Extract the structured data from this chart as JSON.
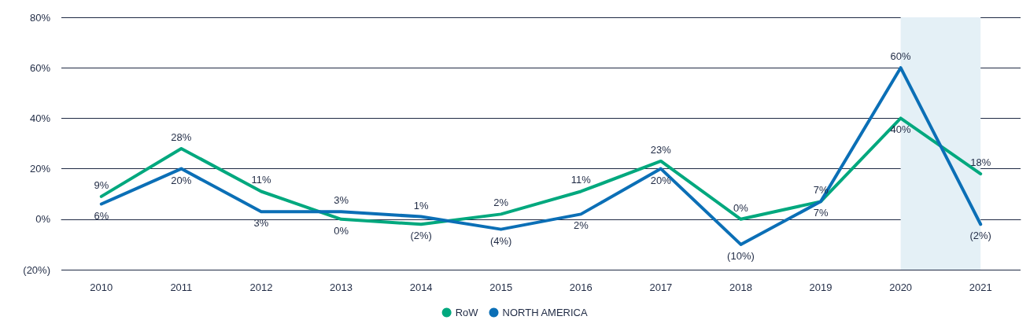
{
  "chart_data": {
    "type": "line",
    "categories": [
      "2010",
      "2011",
      "2012",
      "2013",
      "2014",
      "2015",
      "2016",
      "2017",
      "2018",
      "2019",
      "2020",
      "2021"
    ],
    "series": [
      {
        "name": "RoW",
        "color": "#00a87e",
        "values": [
          9,
          28,
          11,
          0,
          -2,
          2,
          11,
          23,
          0,
          7,
          40,
          18
        ],
        "value_labels": [
          "9%",
          "28%",
          "11%",
          "0%",
          "(2%)",
          "2%",
          "11%",
          "23%",
          "0%",
          "7%",
          "40%",
          "18%"
        ]
      },
      {
        "name": "NORTH AMERICA",
        "color": "#0b6fb6",
        "values": [
          6,
          20,
          3,
          3,
          1,
          -4,
          2,
          20,
          -10,
          7,
          60,
          -2
        ],
        "value_labels": [
          "6%",
          "20%",
          "3%",
          "3%",
          "1%",
          "(4%)",
          "2%",
          "20%",
          "(10%)",
          "7%",
          "60%",
          "(2%)"
        ]
      }
    ],
    "ylim": [
      -20,
      80
    ],
    "yticks": [
      {
        "value": -20,
        "label": "(20%)"
      },
      {
        "value": 0,
        "label": "0%"
      },
      {
        "value": 20,
        "label": "20%"
      },
      {
        "value": 40,
        "label": "40%"
      },
      {
        "value": 60,
        "label": "60%"
      },
      {
        "value": 80,
        "label": "80%"
      }
    ],
    "bands": [
      {
        "axis": "x",
        "from": "2020",
        "to": "2021",
        "color": "#e4f0f6"
      }
    ],
    "grid": "y",
    "legend": "bottom",
    "marker": "none",
    "line_style": "solid"
  }
}
